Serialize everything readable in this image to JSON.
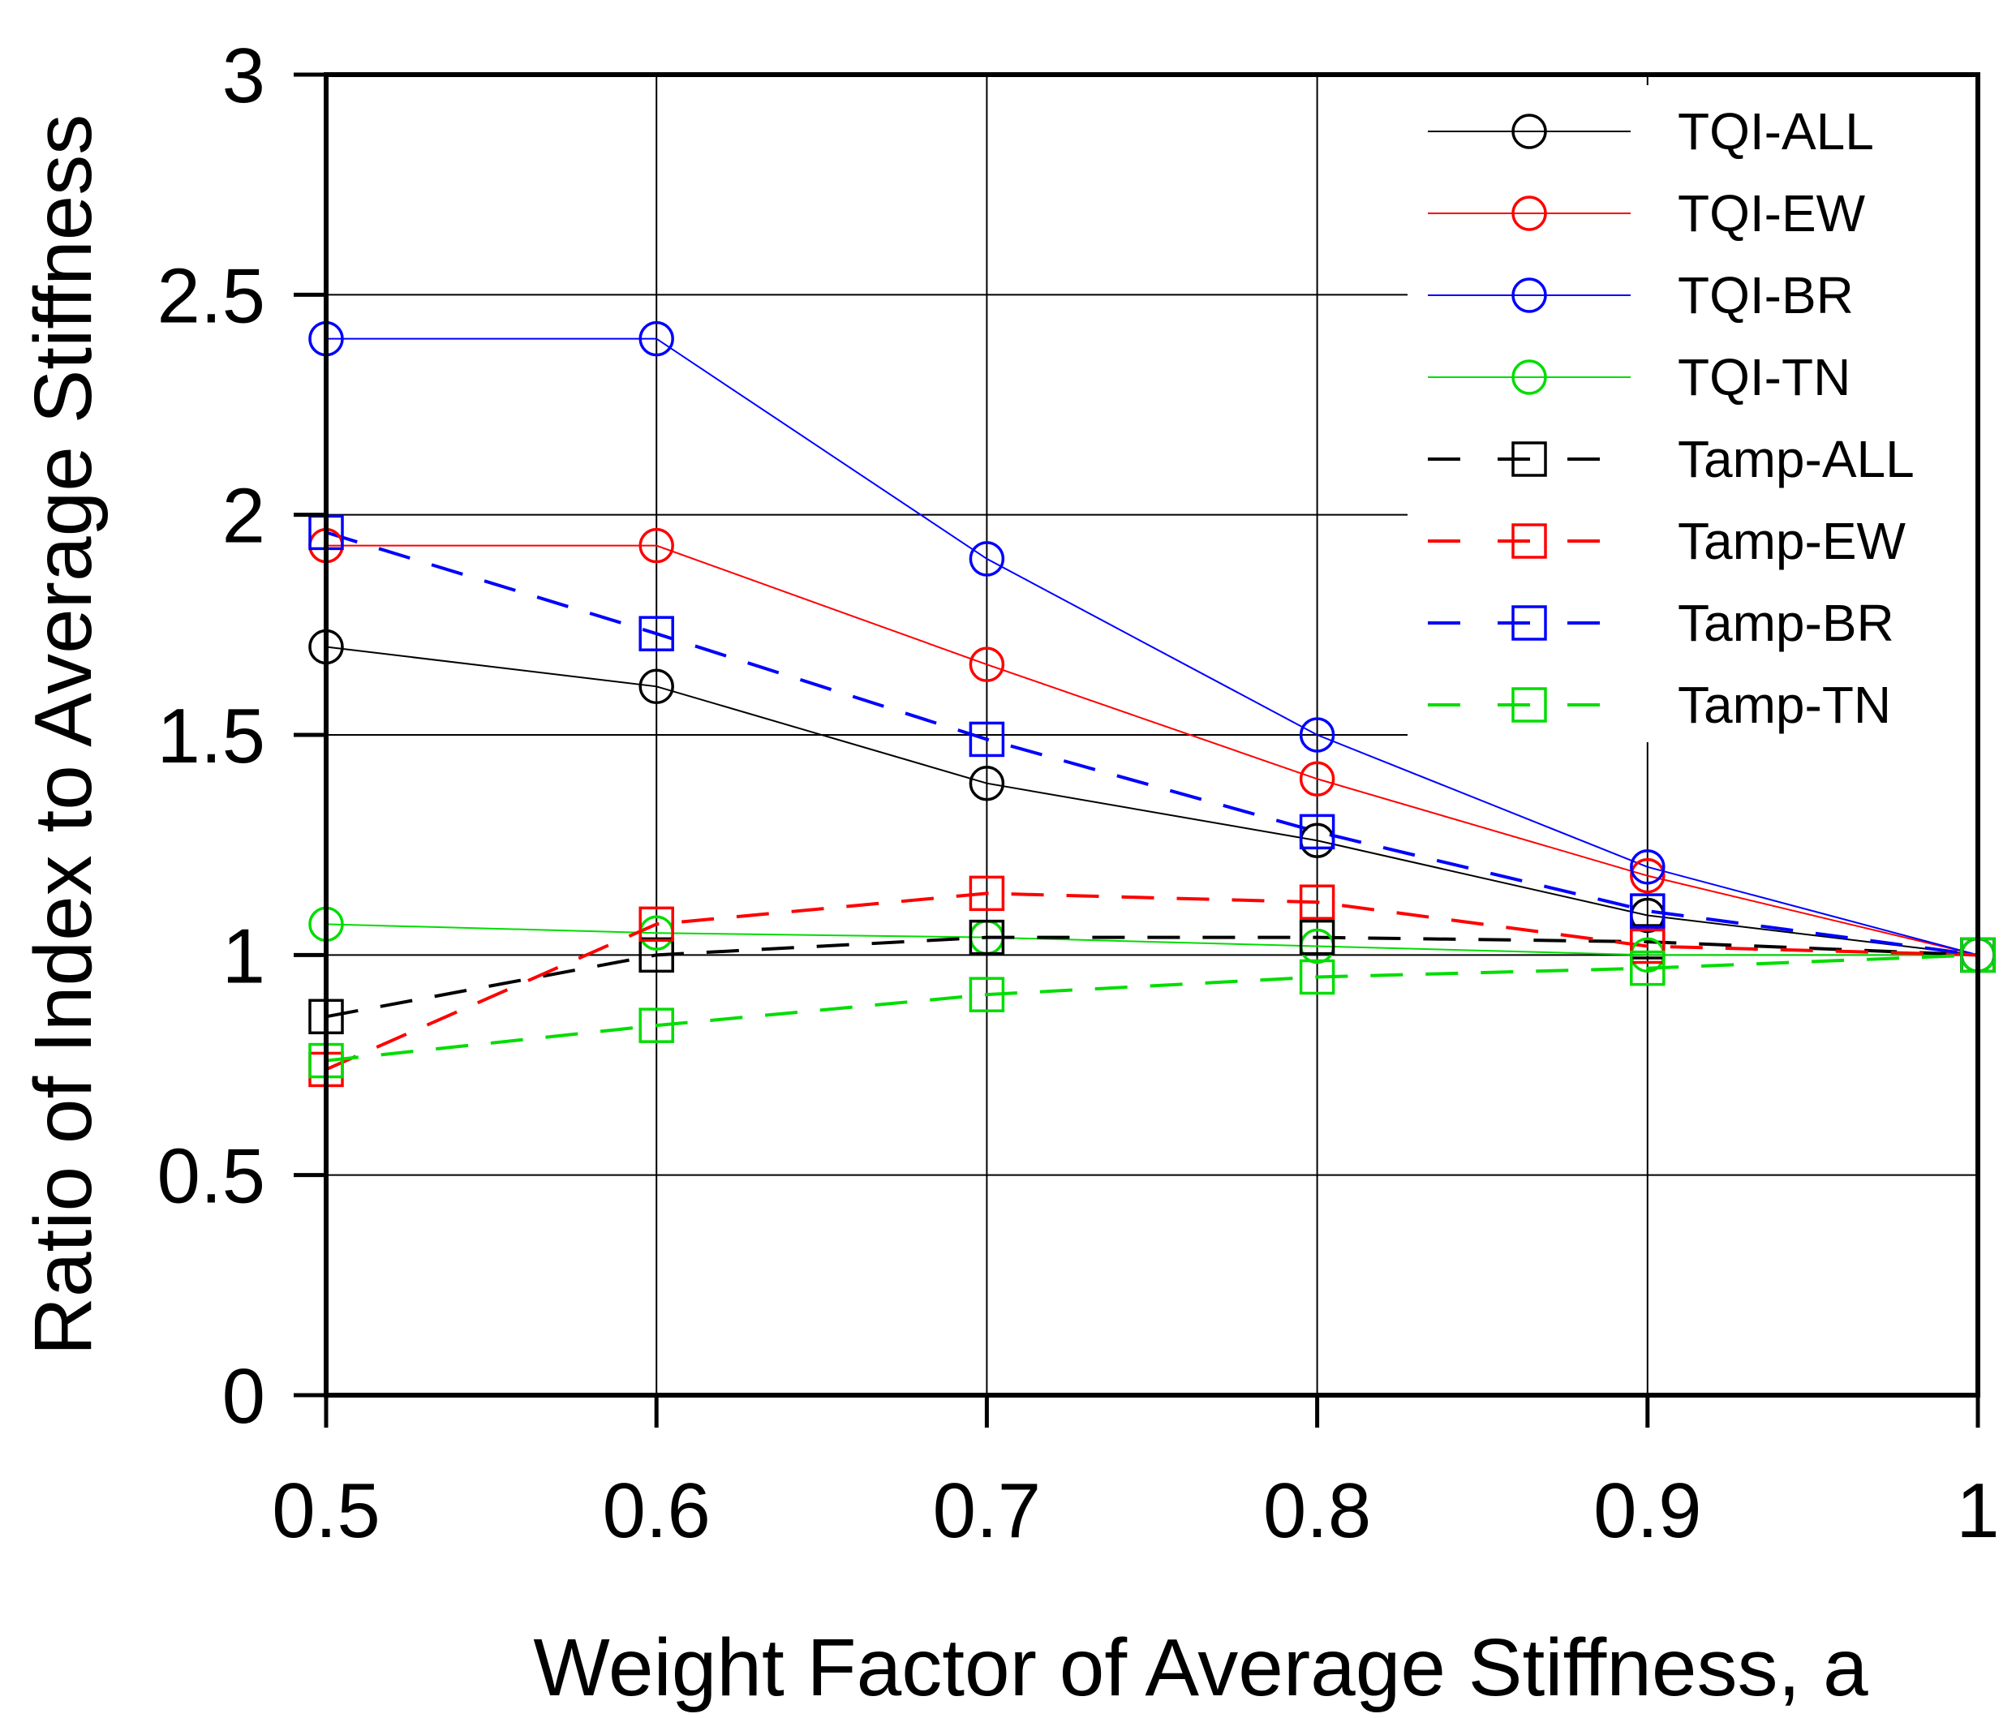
{
  "chart_data": {
    "type": "line",
    "title": "",
    "xlabel": "Weight Factor of Average Stiffness, a",
    "ylabel": "Ratio of Index to Average Stiffness",
    "xlim": [
      0.5,
      1.0
    ],
    "ylim": [
      0,
      3
    ],
    "grid": true,
    "x": [
      0.5,
      0.6,
      0.7,
      0.8,
      0.9,
      1.0
    ],
    "x_tick_labels": [
      "0.5",
      "0.6",
      "0.7",
      "0.8",
      "0.9",
      "1"
    ],
    "y_ticks": [
      0,
      0.5,
      1,
      1.5,
      2,
      2.5,
      3
    ],
    "y_tick_labels": [
      "0",
      "0.5",
      "1",
      "1.5",
      "2",
      "2.5",
      "3"
    ],
    "legend_position": "top-right",
    "series": [
      {
        "name": "TQI-ALL",
        "color": "#000000",
        "marker": "circle",
        "dash": "solid",
        "values": [
          1.7,
          1.61,
          1.39,
          1.26,
          1.09,
          1.0
        ]
      },
      {
        "name": "TQI-EW",
        "color": "#ff0000",
        "marker": "circle",
        "dash": "solid",
        "values": [
          1.93,
          1.93,
          1.66,
          1.4,
          1.18,
          1.0
        ]
      },
      {
        "name": "TQI-BR",
        "color": "#0000ff",
        "marker": "circle",
        "dash": "solid",
        "values": [
          2.4,
          2.4,
          1.9,
          1.5,
          1.2,
          1.0
        ]
      },
      {
        "name": "TQI-TN",
        "color": "#00dd00",
        "marker": "circle",
        "dash": "solid",
        "values": [
          1.07,
          1.05,
          1.04,
          1.02,
          1.0,
          1.0
        ]
      },
      {
        "name": "Tamp-ALL",
        "color": "#000000",
        "marker": "square",
        "dash": "dashed",
        "values": [
          0.86,
          1.0,
          1.04,
          1.04,
          1.03,
          1.0
        ]
      },
      {
        "name": "Tamp-EW",
        "color": "#ff0000",
        "marker": "square",
        "dash": "dashed",
        "values": [
          0.74,
          1.07,
          1.14,
          1.12,
          1.02,
          1.0
        ]
      },
      {
        "name": "Tamp-BR",
        "color": "#0000ff",
        "marker": "square",
        "dash": "dashed",
        "values": [
          1.96,
          1.73,
          1.49,
          1.28,
          1.1,
          1.0
        ]
      },
      {
        "name": "Tamp-TN",
        "color": "#00dd00",
        "marker": "square",
        "dash": "dashed",
        "values": [
          0.76,
          0.84,
          0.91,
          0.95,
          0.97,
          1.0
        ]
      }
    ]
  }
}
